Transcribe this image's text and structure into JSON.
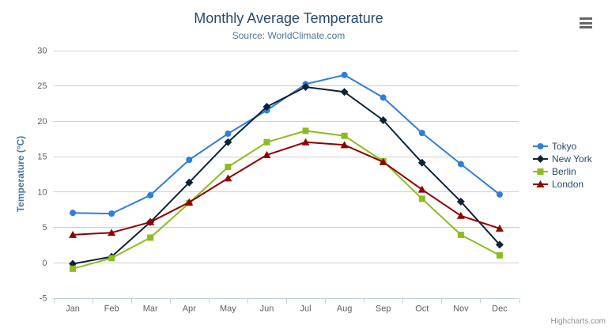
{
  "chart": {
    "credits": "Highcharts.com"
  },
  "chart_data": {
    "type": "line",
    "title": "Monthly Average Temperature",
    "subtitle": "Source: WorldClimate.com",
    "xlabel": "",
    "ylabel": "Temperature (°C)",
    "ylim": [
      -5,
      30
    ],
    "ytick_step": 5,
    "yticks": [
      30,
      25,
      20,
      15,
      10,
      5,
      0,
      -5
    ],
    "grid": true,
    "legend_position": "right",
    "categories": [
      "Jan",
      "Feb",
      "Mar",
      "Apr",
      "May",
      "Jun",
      "Jul",
      "Aug",
      "Sep",
      "Oct",
      "Nov",
      "Dec"
    ],
    "series": [
      {
        "name": "Tokyo",
        "color": "#2f7ed8",
        "marker": "circle",
        "values": [
          7.0,
          6.9,
          9.5,
          14.5,
          18.2,
          21.5,
          25.2,
          26.5,
          23.3,
          18.3,
          13.9,
          9.6
        ]
      },
      {
        "name": "New York",
        "color": "#0d233a",
        "marker": "diamond",
        "values": [
          -0.2,
          0.8,
          5.7,
          11.3,
          17.0,
          22.0,
          24.8,
          24.1,
          20.1,
          14.1,
          8.6,
          2.5
        ]
      },
      {
        "name": "Berlin",
        "color": "#8bbc21",
        "marker": "square",
        "values": [
          -0.9,
          0.6,
          3.5,
          8.4,
          13.5,
          17.0,
          18.6,
          17.9,
          14.3,
          9.0,
          3.9,
          1.0
        ]
      },
      {
        "name": "London",
        "color": "#910000",
        "marker": "triangle",
        "values": [
          3.9,
          4.2,
          5.7,
          8.5,
          11.9,
          15.2,
          17.0,
          16.6,
          14.2,
          10.3,
          6.6,
          4.8
        ]
      }
    ]
  },
  "colors": {
    "title": "#274b6d",
    "subtitle": "#4d759e",
    "axis_title": "#4d759e",
    "tick_label": "#606060",
    "gridline": "#d0d0d0",
    "axis_line": "#c0d0e0",
    "legend_text": "#274b6d",
    "credits": "#909090",
    "menu_icon": "#666666",
    "background": "#ffffff"
  },
  "icons": {
    "menu": "hamburger-icon"
  }
}
